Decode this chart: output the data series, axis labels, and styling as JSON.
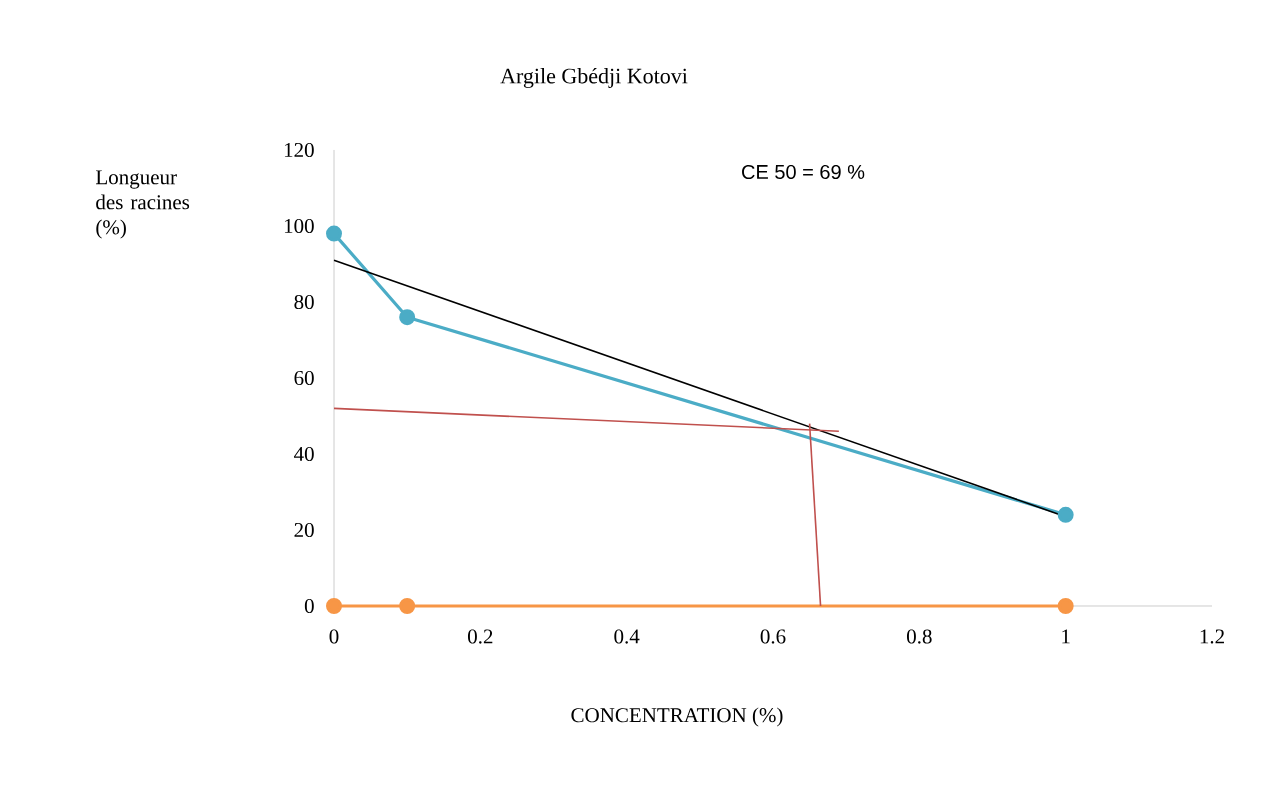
{
  "chart_data": {
    "type": "line",
    "title": "Argile Gbédji Kotovi",
    "xlabel": "CONCENTRATION  (%)",
    "ylabel": "Longueur des racines (%)",
    "annotations": [
      "CE 50 = 69 %"
    ],
    "x": [
      0,
      0.1,
      1
    ],
    "series": [
      {
        "color": "#4bacc6",
        "values": [
          98,
          76,
          24
        ],
        "marker": "circle"
      },
      {
        "color": "#f79646",
        "values": [
          0,
          0,
          0
        ],
        "marker": "circle"
      },
      {
        "color": "#000000",
        "x": [
          0,
          1
        ],
        "values": [
          91,
          23.5
        ],
        "marker": "none"
      },
      {
        "color": "#c0504d",
        "x": [
          0,
          0.69
        ],
        "values": [
          52,
          46
        ],
        "marker": "none"
      },
      {
        "color": "#c0504d",
        "x": [
          0.65,
          0.665
        ],
        "values": [
          48,
          0
        ],
        "marker": "none"
      }
    ],
    "xlim": [
      0,
      1.2
    ],
    "ylim": [
      0,
      120
    ],
    "xticks": [
      0,
      0.2,
      0.4,
      0.6,
      0.8,
      1,
      1.2
    ],
    "yticks": [
      0,
      20,
      40,
      60,
      80,
      100,
      120
    ],
    "grid": false
  }
}
